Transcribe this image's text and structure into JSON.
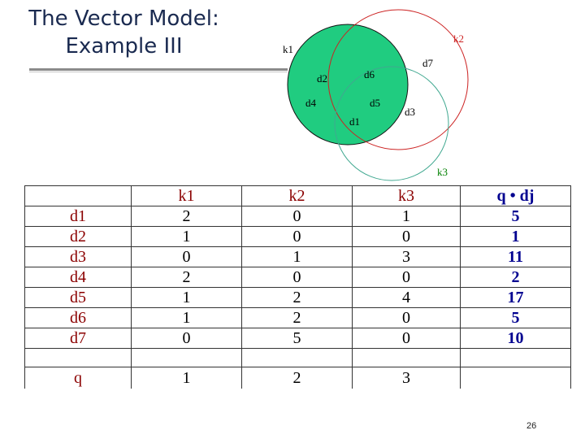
{
  "slide": {
    "title_line1": "The Vector Model:",
    "title_line2": "Example  III",
    "page_number": "26"
  },
  "venn": {
    "labels": {
      "k1": "k1",
      "k2": "k2",
      "k3": "k3",
      "d1": "d1",
      "d2": "d2",
      "d3": "d3",
      "d4": "d4",
      "d5": "d5",
      "d6": "d6",
      "d7": "d7"
    },
    "colors": {
      "k1_fill": "#20cc80",
      "k2_stroke": "#cc2222",
      "k3_stroke": "#40a890",
      "label": "#000000",
      "k2_label": "#cc2222",
      "k3_label": "#008000"
    }
  },
  "table": {
    "headers": [
      "",
      "k1",
      "k2",
      "k3",
      "q • dj"
    ],
    "rows": [
      [
        "d1",
        "2",
        "0",
        "1",
        "5"
      ],
      [
        "d2",
        "1",
        "0",
        "0",
        "1"
      ],
      [
        "d3",
        "0",
        "1",
        "3",
        "11"
      ],
      [
        "d4",
        "2",
        "0",
        "0",
        "2"
      ],
      [
        "d5",
        "1",
        "2",
        "4",
        "17"
      ],
      [
        "d6",
        "1",
        "2",
        "0",
        "5"
      ],
      [
        "d7",
        "0",
        "5",
        "0",
        "10"
      ]
    ],
    "query": [
      "q",
      "1",
      "2",
      "3",
      ""
    ]
  }
}
